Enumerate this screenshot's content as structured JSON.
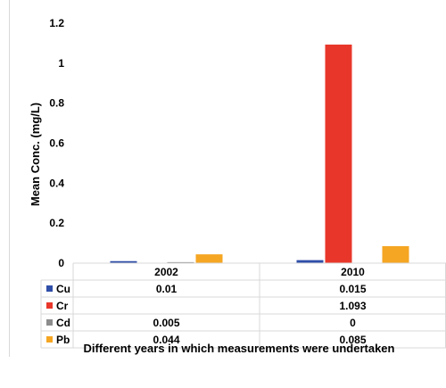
{
  "chart_data": {
    "type": "bar",
    "categories": [
      "2002",
      "2010"
    ],
    "series": [
      {
        "name": "Cu",
        "values": [
          0.01,
          0.015
        ],
        "labels": [
          "0.01",
          "0.015"
        ],
        "color": "#2f4ea8"
      },
      {
        "name": "Cr",
        "values": [
          null,
          1.093
        ],
        "labels": [
          "",
          "1.093"
        ],
        "color": "#e8372a"
      },
      {
        "name": "Cd",
        "values": [
          0.005,
          0
        ],
        "labels": [
          "0.005",
          "0"
        ],
        "color": "#8c8c8c"
      },
      {
        "name": "Pb",
        "values": [
          0.044,
          0.085
        ],
        "labels": [
          "0.044",
          "0.085"
        ],
        "color": "#f5a623"
      }
    ],
    "ylabel": "Mean Conc. (mg/L)",
    "xlabel": "Different years in which measurements were undertaken",
    "ylim": [
      0,
      1.2
    ],
    "yticks": [
      0,
      0.2,
      0.4,
      0.6,
      0.8,
      1,
      1.2
    ],
    "ytick_labels": [
      "0",
      "0.2",
      "0.4",
      "0.6",
      "0.8",
      "1",
      "1.2"
    ],
    "grid": false,
    "legend": "data-table"
  }
}
